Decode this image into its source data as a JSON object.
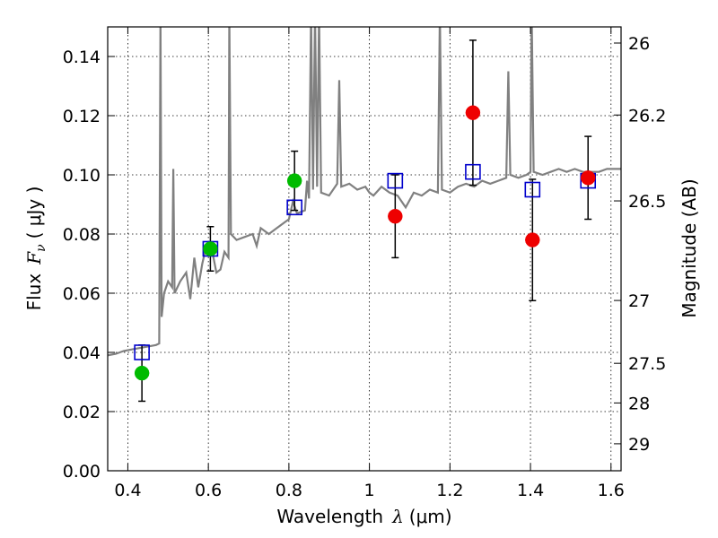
{
  "chart_data": {
    "type": "scatter",
    "title": "",
    "xlabel_text": "Wavelength",
    "xlabel_symbol": "λ",
    "xlabel_unit": "(μm)",
    "ylabel_text": "Flux",
    "ylabel_symbol": "F",
    "ylabel_subscript": "ν",
    "ylabel_unit": "( μJy )",
    "y2label": "Magnitude (AB)",
    "xlim": [
      0.35,
      1.625
    ],
    "ylim": [
      0.0,
      0.15
    ],
    "grid": true,
    "x_ticks": [
      {
        "value": 0.4,
        "label": "0.4"
      },
      {
        "value": 0.6,
        "label": "0.6"
      },
      {
        "value": 0.8,
        "label": "0.8"
      },
      {
        "value": 1.0,
        "label": "1"
      },
      {
        "value": 1.2,
        "label": "1.2"
      },
      {
        "value": 1.4,
        "label": "1.4"
      },
      {
        "value": 1.6,
        "label": "1.6"
      }
    ],
    "y_ticks": [
      {
        "value": 0.0,
        "label": "0.00"
      },
      {
        "value": 0.02,
        "label": "0.02"
      },
      {
        "value": 0.04,
        "label": "0.04"
      },
      {
        "value": 0.06,
        "label": "0.06"
      },
      {
        "value": 0.08,
        "label": "0.08"
      },
      {
        "value": 0.1,
        "label": "0.10"
      },
      {
        "value": 0.12,
        "label": "0.12"
      },
      {
        "value": 0.14,
        "label": "0.14"
      }
    ],
    "y2_ticks": [
      {
        "value": 26.0,
        "label": "26"
      },
      {
        "value": 26.2,
        "label": "26.2"
      },
      {
        "value": 26.5,
        "label": "26.5"
      },
      {
        "value": 27.0,
        "label": "27"
      },
      {
        "value": 27.5,
        "label": "27.5"
      },
      {
        "value": 28.0,
        "label": "28"
      },
      {
        "value": 29.0,
        "label": "29"
      }
    ],
    "colors": {
      "model": "#808080",
      "optical": "#00bb00",
      "nir": "#ee0000",
      "synthetic": "#0000cc",
      "axis": "#000000"
    },
    "model_spectrum": [
      [
        0.35,
        0.039
      ],
      [
        0.37,
        0.0395
      ],
      [
        0.39,
        0.0405
      ],
      [
        0.41,
        0.041
      ],
      [
        0.43,
        0.0415
      ],
      [
        0.45,
        0.042
      ],
      [
        0.47,
        0.0425
      ],
      [
        0.478,
        0.043
      ],
      [
        0.481,
        0.155
      ],
      [
        0.484,
        0.052
      ],
      [
        0.49,
        0.06
      ],
      [
        0.5,
        0.064
      ],
      [
        0.51,
        0.062
      ],
      [
        0.513,
        0.102
      ],
      [
        0.516,
        0.06
      ],
      [
        0.53,
        0.064
      ],
      [
        0.545,
        0.067
      ],
      [
        0.555,
        0.058
      ],
      [
        0.565,
        0.072
      ],
      [
        0.575,
        0.062
      ],
      [
        0.585,
        0.07
      ],
      [
        0.595,
        0.076
      ],
      [
        0.61,
        0.074
      ],
      [
        0.62,
        0.067
      ],
      [
        0.63,
        0.068
      ],
      [
        0.64,
        0.074
      ],
      [
        0.65,
        0.072
      ],
      [
        0.652,
        0.155
      ],
      [
        0.656,
        0.08
      ],
      [
        0.67,
        0.078
      ],
      [
        0.69,
        0.079
      ],
      [
        0.71,
        0.08
      ],
      [
        0.72,
        0.076
      ],
      [
        0.73,
        0.082
      ],
      [
        0.75,
        0.08
      ],
      [
        0.77,
        0.082
      ],
      [
        0.79,
        0.084
      ],
      [
        0.8,
        0.085
      ],
      [
        0.81,
        0.091
      ],
      [
        0.82,
        0.087
      ],
      [
        0.84,
        0.088
      ],
      [
        0.845,
        0.098
      ],
      [
        0.85,
        0.092
      ],
      [
        0.855,
        0.155
      ],
      [
        0.86,
        0.095
      ],
      [
        0.865,
        0.155
      ],
      [
        0.87,
        0.096
      ],
      [
        0.875,
        0.155
      ],
      [
        0.88,
        0.094
      ],
      [
        0.9,
        0.093
      ],
      [
        0.92,
        0.097
      ],
      [
        0.925,
        0.132
      ],
      [
        0.93,
        0.096
      ],
      [
        0.95,
        0.097
      ],
      [
        0.97,
        0.095
      ],
      [
        0.99,
        0.096
      ],
      [
        1.0,
        0.094
      ],
      [
        1.01,
        0.093
      ],
      [
        1.03,
        0.096
      ],
      [
        1.05,
        0.094
      ],
      [
        1.07,
        0.093
      ],
      [
        1.09,
        0.089
      ],
      [
        1.11,
        0.094
      ],
      [
        1.13,
        0.093
      ],
      [
        1.15,
        0.095
      ],
      [
        1.17,
        0.094
      ],
      [
        1.175,
        0.155
      ],
      [
        1.18,
        0.095
      ],
      [
        1.2,
        0.094
      ],
      [
        1.22,
        0.096
      ],
      [
        1.24,
        0.097
      ],
      [
        1.26,
        0.096
      ],
      [
        1.28,
        0.098
      ],
      [
        1.3,
        0.097
      ],
      [
        1.32,
        0.098
      ],
      [
        1.34,
        0.099
      ],
      [
        1.345,
        0.135
      ],
      [
        1.35,
        0.1
      ],
      [
        1.37,
        0.099
      ],
      [
        1.39,
        0.1
      ],
      [
        1.4,
        0.101
      ],
      [
        1.403,
        0.155
      ],
      [
        1.408,
        0.101
      ],
      [
        1.43,
        0.1
      ],
      [
        1.45,
        0.101
      ],
      [
        1.47,
        0.102
      ],
      [
        1.49,
        0.101
      ],
      [
        1.51,
        0.102
      ],
      [
        1.53,
        0.101
      ],
      [
        1.55,
        0.101
      ],
      [
        1.57,
        0.101
      ],
      [
        1.59,
        0.102
      ],
      [
        1.61,
        0.102
      ],
      [
        1.625,
        0.102
      ]
    ],
    "series": [
      {
        "marker": "square",
        "points": [
          [
            0.435,
            0.04
          ],
          [
            0.605,
            0.075
          ],
          [
            0.814,
            0.089
          ],
          [
            1.064,
            0.098
          ],
          [
            1.257,
            0.101
          ],
          [
            1.405,
            0.095
          ],
          [
            1.543,
            0.098
          ]
        ]
      },
      {
        "marker": "circle",
        "color_key": "optical",
        "points": [
          {
            "x": 0.435,
            "y": 0.033,
            "err": 0.0095
          },
          {
            "x": 0.605,
            "y": 0.075,
            "err": 0.0075
          },
          {
            "x": 0.814,
            "y": 0.098,
            "err": 0.01
          }
        ]
      },
      {
        "marker": "circle",
        "color_key": "nir",
        "points": [
          {
            "x": 1.064,
            "y": 0.086,
            "err": 0.014
          },
          {
            "x": 1.257,
            "y": 0.121,
            "err": 0.0245
          },
          {
            "x": 1.405,
            "y": 0.078,
            "err": 0.0205
          },
          {
            "x": 1.543,
            "y": 0.099,
            "err": 0.014
          }
        ]
      }
    ]
  }
}
